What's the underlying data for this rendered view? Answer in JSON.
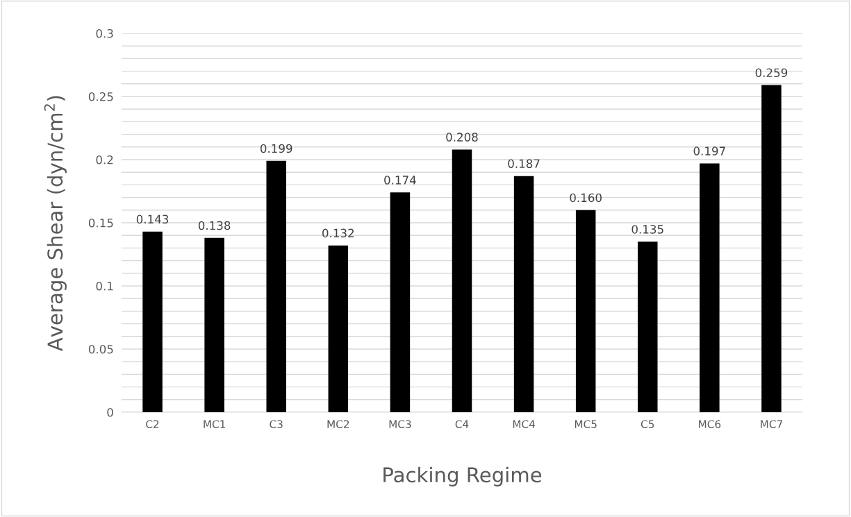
{
  "chart_data": {
    "type": "bar",
    "xlabel": "Packing Regime",
    "ylabel": "Average Shear (dyn/cm$^{2}$)",
    "categories": [
      "C2",
      "MC1",
      "C3",
      "MC2",
      "MC3",
      "C4",
      "MC4",
      "MC5",
      "C5",
      "MC6",
      "MC7"
    ],
    "values": [
      0.143,
      0.138,
      0.199,
      0.132,
      0.174,
      0.208,
      0.187,
      0.16,
      0.135,
      0.197,
      0.259
    ],
    "value_labels": [
      "0.143",
      "0.138",
      "0.199",
      "0.132",
      "0.174",
      "0.208",
      "0.187",
      "0.160",
      "0.135",
      "0.197",
      "0.259"
    ],
    "color": "#000000",
    "ylim": [
      0,
      0.3
    ],
    "yticks": [
      {
        "value": 0,
        "label": "0"
      },
      {
        "value": 0.01,
        "label": null
      },
      {
        "value": 0.02,
        "label": null
      },
      {
        "value": 0.03,
        "label": null
      },
      {
        "value": 0.04,
        "label": null
      },
      {
        "value": 0.05,
        "label": "0.05"
      },
      {
        "value": 0.06,
        "label": null
      },
      {
        "value": 0.07,
        "label": null
      },
      {
        "value": 0.08,
        "label": null
      },
      {
        "value": 0.09,
        "label": null
      },
      {
        "value": 0.1,
        "label": "0.1"
      },
      {
        "value": 0.11,
        "label": null
      },
      {
        "value": 0.12,
        "label": null
      },
      {
        "value": 0.13,
        "label": null
      },
      {
        "value": 0.14,
        "label": null
      },
      {
        "value": 0.15,
        "label": "0.15"
      },
      {
        "value": 0.16,
        "label": null
      },
      {
        "value": 0.17,
        "label": null
      },
      {
        "value": 0.18,
        "label": null
      },
      {
        "value": 0.19,
        "label": null
      },
      {
        "value": 0.2,
        "label": "0.2"
      },
      {
        "value": 0.21,
        "label": null
      },
      {
        "value": 0.22,
        "label": null
      },
      {
        "value": 0.23,
        "label": null
      },
      {
        "value": 0.24,
        "label": null
      },
      {
        "value": 0.25,
        "label": "0.25"
      },
      {
        "value": 0.26,
        "label": null
      },
      {
        "value": 0.27,
        "label": null
      },
      {
        "value": 0.28,
        "label": null
      },
      {
        "value": 0.29,
        "label": null
      },
      {
        "value": 0.3,
        "label": "0.3"
      }
    ],
    "grid": "y",
    "legend": false
  }
}
